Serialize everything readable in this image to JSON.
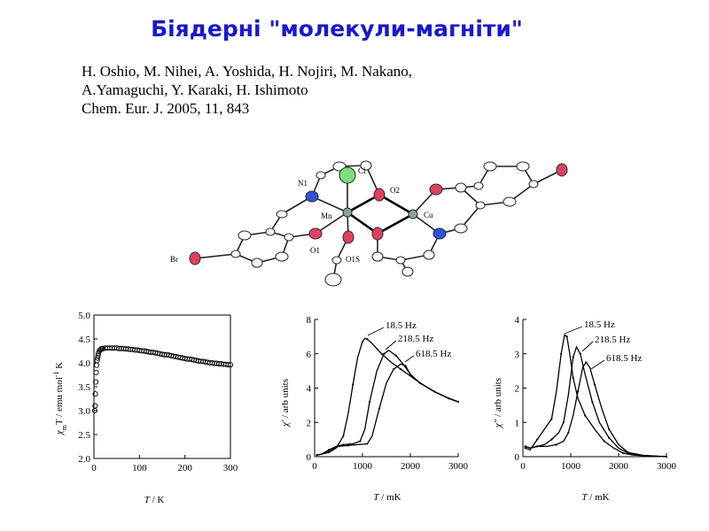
{
  "slide": {
    "title": "Біядерні \"молекули-магніти\"",
    "reference": {
      "line1": "H. Oshio, M. Nihei, A. Yoshida, H. Nojiri, M. Nakano,",
      "line2": "A.Yamaguchi, Y. Karaki, H. Ishimoto",
      "line3": "Chem. Eur. J. 2005, 11, 843"
    }
  },
  "structure": {
    "atom_labels": {
      "n1": "N1",
      "cl": "Cl",
      "o2": "O2",
      "mn": "Mn",
      "cu": "Cu",
      "br": "Br",
      "o1": "O1",
      "o1s": "O1S"
    },
    "colors": {
      "carbon": "#ffffff",
      "oxygen": "#e04060",
      "nitrogen": "#3050e0",
      "chlorine": "#7fdc7f",
      "metal": "#8aa0a0"
    }
  },
  "chart_data": [
    {
      "type": "scatter",
      "ylabel": "χmT / emu mol⁻¹ K",
      "ylabel_main": "χ",
      "ylabel_sub": "m",
      "ylabel_rest": "T / emu mol",
      "ylabel_sup": "-1",
      "ylabel_end": " K",
      "xlabel": "T / K",
      "xlabel_var": "T",
      "xlabel_unit": " / K",
      "xlim": [
        0,
        300
      ],
      "ylim": [
        2.0,
        5.0
      ],
      "xticks": [
        "0",
        "100",
        "200",
        "300"
      ],
      "yticks": [
        "2.0",
        "2.5",
        "3.0",
        "3.5",
        "4.0",
        "4.5",
        "5.0"
      ],
      "series": [
        {
          "x": [
            1.8,
            2.5,
            3,
            4,
            5,
            6,
            7,
            8,
            9,
            10,
            12,
            14,
            16,
            18,
            20,
            25,
            30,
            35,
            40,
            45,
            50,
            55,
            60,
            65,
            70,
            75,
            80,
            85,
            90,
            95,
            100,
            105,
            110,
            115,
            120,
            125,
            130,
            135,
            140,
            145,
            150,
            155,
            160,
            165,
            170,
            175,
            180,
            185,
            190,
            195,
            200,
            205,
            210,
            215,
            220,
            225,
            230,
            235,
            240,
            245,
            250,
            255,
            260,
            265,
            270,
            275,
            280,
            285,
            290,
            295,
            300
          ],
          "y": [
            3.0,
            3.1,
            3.35,
            3.6,
            3.8,
            3.95,
            4.05,
            4.1,
            4.15,
            4.2,
            4.25,
            4.27,
            4.29,
            4.3,
            4.3,
            4.31,
            4.31,
            4.31,
            4.31,
            4.31,
            4.31,
            4.3,
            4.3,
            4.3,
            4.29,
            4.29,
            4.28,
            4.28,
            4.27,
            4.27,
            4.26,
            4.25,
            4.25,
            4.24,
            4.23,
            4.22,
            4.22,
            4.21,
            4.2,
            4.19,
            4.18,
            4.17,
            4.17,
            4.16,
            4.15,
            4.14,
            4.13,
            4.12,
            4.11,
            4.1,
            4.09,
            4.08,
            4.08,
            4.07,
            4.06,
            4.05,
            4.04,
            4.03,
            4.03,
            4.02,
            4.01,
            4.0,
            4.0,
            3.99,
            3.99,
            3.98,
            3.98,
            3.97,
            3.97,
            3.96,
            3.96
          ]
        }
      ]
    },
    {
      "type": "line",
      "ylabel": "χ' / arb units",
      "ylabel_var": "χ'",
      "ylabel_unit": " / arb units",
      "xlabel": "T / mK",
      "xlabel_var": "T",
      "xlabel_unit": " / mK",
      "xlim": [
        0,
        3000
      ],
      "ylim": [
        0,
        8
      ],
      "xticks": [
        "0",
        "1000",
        "2000",
        "3000"
      ],
      "yticks": [
        "0",
        "2",
        "4",
        "6",
        "8"
      ],
      "series": [
        {
          "name": "18.5 Hz",
          "x": [
            50,
            150,
            300,
            450,
            600,
            700,
            800,
            900,
            1000,
            1050,
            1100,
            1200,
            1400,
            1600,
            1800,
            2000,
            2200,
            2500,
            2800,
            3000
          ],
          "y": [
            0.1,
            0.15,
            0.25,
            0.5,
            1.2,
            2.5,
            4.2,
            5.8,
            6.7,
            6.9,
            6.85,
            6.6,
            6.0,
            5.5,
            5.1,
            4.7,
            4.3,
            3.8,
            3.4,
            3.2
          ]
        },
        {
          "name": "218.5 Hz",
          "x": [
            50,
            150,
            300,
            450,
            600,
            800,
            950,
            1050,
            1150,
            1300,
            1450,
            1550,
            1700,
            1850,
            2000,
            2200,
            2500,
            2800,
            3000
          ],
          "y": [
            0.1,
            0.15,
            0.4,
            0.6,
            0.7,
            0.75,
            0.9,
            1.6,
            3.2,
            5.0,
            6.0,
            6.2,
            5.9,
            5.4,
            4.8,
            4.3,
            3.8,
            3.4,
            3.2
          ]
        },
        {
          "name": "618.5 Hz",
          "x": [
            50,
            150,
            300,
            500,
            700,
            900,
            1100,
            1200,
            1350,
            1500,
            1650,
            1800,
            1900,
            2000,
            2200,
            2500,
            2800,
            3000
          ],
          "y": [
            0.1,
            0.15,
            0.35,
            0.6,
            0.65,
            0.7,
            0.75,
            1.2,
            2.8,
            4.3,
            5.1,
            5.4,
            5.3,
            4.8,
            4.3,
            3.8,
            3.4,
            3.2
          ]
        }
      ]
    },
    {
      "type": "line",
      "ylabel": "χ\" / arb units",
      "ylabel_var": "χ\"",
      "ylabel_unit": " / arb units",
      "xlabel": "T / mK",
      "xlabel_var": "T",
      "xlabel_unit": " / mK",
      "xlim": [
        0,
        3000
      ],
      "ylim": [
        0,
        4
      ],
      "xticks": [
        "0",
        "1000",
        "2000",
        "3000"
      ],
      "yticks": [
        "0",
        "1",
        "2",
        "3",
        "4"
      ],
      "series": [
        {
          "name": "18.5 Hz",
          "x": [
            50,
            150,
            300,
            450,
            600,
            700,
            800,
            870,
            920,
            980,
            1050,
            1150,
            1300,
            1500,
            1700,
            1900,
            2100,
            2300,
            2600,
            3000
          ],
          "y": [
            0.25,
            0.2,
            0.5,
            0.8,
            1.1,
            1.9,
            3.0,
            3.55,
            3.5,
            3.0,
            2.3,
            1.7,
            1.2,
            0.8,
            0.45,
            0.25,
            0.1,
            0.05,
            0.02,
            0.0
          ]
        },
        {
          "name": "218.5 Hz",
          "x": [
            50,
            150,
            300,
            450,
            600,
            750,
            850,
            950,
            1050,
            1120,
            1200,
            1300,
            1450,
            1600,
            1800,
            2000,
            2200,
            2500,
            3000
          ],
          "y": [
            0.3,
            0.25,
            0.3,
            0.35,
            0.5,
            0.7,
            1.0,
            1.8,
            2.9,
            3.2,
            3.0,
            2.4,
            1.6,
            1.0,
            0.55,
            0.25,
            0.1,
            0.03,
            0.0
          ]
        },
        {
          "name": "618.5 Hz",
          "x": [
            50,
            150,
            300,
            500,
            700,
            850,
            950,
            1050,
            1150,
            1250,
            1320,
            1400,
            1500,
            1650,
            1800,
            2000,
            2200,
            2500,
            3000
          ],
          "y": [
            0.3,
            0.25,
            0.3,
            0.3,
            0.35,
            0.45,
            0.7,
            1.2,
            1.9,
            2.6,
            2.75,
            2.6,
            2.1,
            1.4,
            0.8,
            0.35,
            0.12,
            0.04,
            0.0
          ]
        }
      ]
    }
  ]
}
